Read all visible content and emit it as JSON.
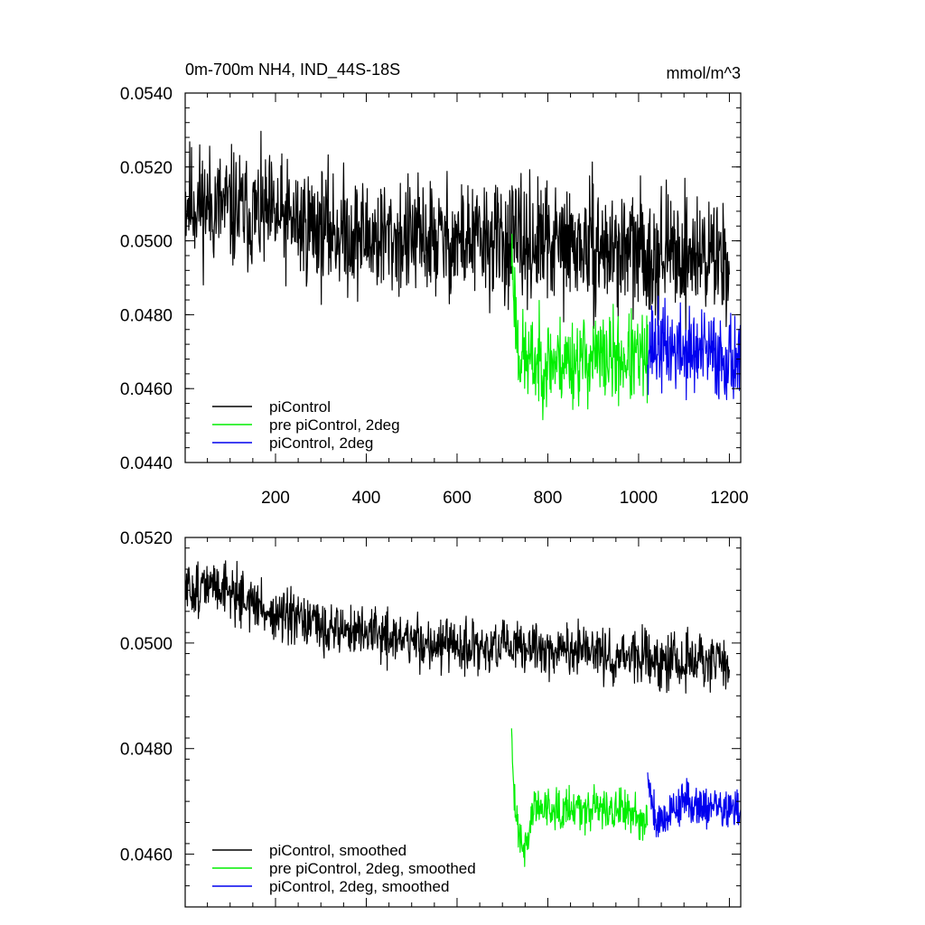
{
  "figure": {
    "colors": {
      "piControl": "#000000",
      "pre_piControl_2deg": "#00ee00",
      "piControl_2deg": "#0000ee"
    }
  },
  "chart_data": [
    {
      "type": "line",
      "title_left": "0m-700m NH4, IND_44S-18S",
      "title_right": "mmol/m^3",
      "xlim": [
        1,
        1225
      ],
      "ylim": [
        0.044,
        0.054
      ],
      "x_ticks": [
        200,
        400,
        600,
        800,
        1000,
        1200
      ],
      "y_ticks": [
        "0.0440",
        "0.0460",
        "0.0480",
        "0.0500",
        "0.0520",
        "0.0540"
      ],
      "grid": false,
      "legend_position": "bottom-left",
      "series": [
        {
          "name": "piControl",
          "color": "#000000",
          "x_range": [
            1,
            1200
          ],
          "trend": [
            [
              1,
              0.0511
            ],
            [
              200,
              0.0506
            ],
            [
              400,
              0.0501
            ],
            [
              600,
              0.05
            ],
            [
              800,
              0.0499
            ],
            [
              1000,
              0.0497
            ],
            [
              1200,
              0.0496
            ]
          ],
          "noise": 0.0008,
          "seed": 11
        },
        {
          "name": "pre piControl, 2deg",
          "color": "#00ee00",
          "x_range": [
            720,
            1020
          ],
          "trend": [
            [
              720,
              0.0497
            ],
            [
              735,
              0.047
            ],
            [
              760,
              0.0467
            ],
            [
              900,
              0.0468
            ],
            [
              1020,
              0.0468
            ]
          ],
          "noise": 0.0006,
          "seed": 23
        },
        {
          "name": "piControl, 2deg",
          "color": "#0000ee",
          "x_range": [
            1020,
            1225
          ],
          "trend": [
            [
              1020,
              0.0472
            ],
            [
              1100,
              0.047
            ],
            [
              1225,
              0.0468
            ]
          ],
          "noise": 0.0006,
          "seed": 37
        }
      ]
    },
    {
      "type": "line",
      "xlim": [
        1,
        1225
      ],
      "ylim": [
        0.045,
        0.052
      ],
      "x_ticks": [
        200,
        400,
        600,
        800,
        1000,
        1200
      ],
      "y_ticks": [
        "0.0460",
        "0.0480",
        "0.0500",
        "0.0520"
      ],
      "grid": false,
      "legend_position": "bottom-left",
      "series": [
        {
          "name": "piControl, smoothed",
          "color": "#000000",
          "x_range": [
            1,
            1200
          ],
          "trend": [
            [
              1,
              0.051
            ],
            [
              80,
              0.0511
            ],
            [
              200,
              0.0505
            ],
            [
              300,
              0.0503
            ],
            [
              400,
              0.0502
            ],
            [
              600,
              0.0499
            ],
            [
              800,
              0.0499
            ],
            [
              1000,
              0.0497
            ],
            [
              1200,
              0.0496
            ]
          ],
          "noise": 0.00025,
          "seed": 51
        },
        {
          "name": "pre piControl, 2deg, smoothed",
          "color": "#00ee00",
          "x_range": [
            720,
            1020
          ],
          "trend": [
            [
              720,
              0.0481
            ],
            [
              728,
              0.0468
            ],
            [
              750,
              0.0461
            ],
            [
              770,
              0.0469
            ],
            [
              900,
              0.0469
            ],
            [
              1020,
              0.0467
            ]
          ],
          "noise": 0.0002,
          "seed": 63
        },
        {
          "name": "piControl, 2deg, smoothed",
          "color": "#0000ee",
          "x_range": [
            1020,
            1225
          ],
          "trend": [
            [
              1020,
              0.0475
            ],
            [
              1040,
              0.0466
            ],
            [
              1100,
              0.047
            ],
            [
              1225,
              0.0468
            ]
          ],
          "noise": 0.0002,
          "seed": 79
        }
      ]
    }
  ]
}
